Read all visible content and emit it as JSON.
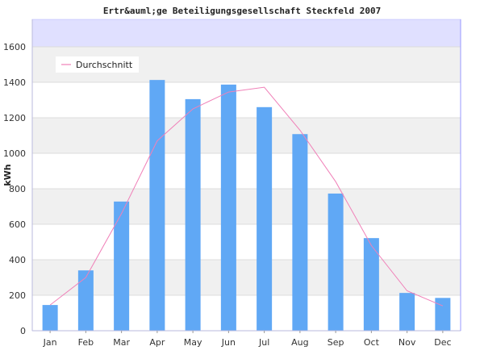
{
  "chart_data": {
    "type": "bar",
    "title": "Ertr&auml;ge Beteiligungsgesellschaft Steckfeld 2007",
    "ylabel": "kWh",
    "xlabel": "",
    "ylim": [
      0,
      1600
    ],
    "yticks": [
      "0",
      "200",
      "400",
      "600",
      "800",
      "1000",
      "1200",
      "1400",
      "1600"
    ],
    "categories": [
      "Jan",
      "Feb",
      "Mar",
      "Apr",
      "May",
      "Jun",
      "Jul",
      "Aug",
      "Sep",
      "Oct",
      "Nov",
      "Dec"
    ],
    "series": [
      {
        "type": "bar",
        "values": [
          145,
          340,
          728,
          1413,
          1305,
          1387,
          1260,
          1108,
          773,
          522,
          213,
          185
        ],
        "color": "#60a8f5"
      },
      {
        "type": "line",
        "name": "Durchschnitt",
        "values": [
          145,
          300,
          660,
          1070,
          1250,
          1345,
          1372,
          1130,
          840,
          480,
          225,
          140
        ],
        "color": "#f080b8"
      }
    ],
    "grid": true,
    "legend_position": "top-left",
    "colors": {
      "band_light": "#f0f0f0",
      "band_white": "#ffffff",
      "top_area": "#e0e0ff",
      "axis": "#9999ff"
    }
  }
}
